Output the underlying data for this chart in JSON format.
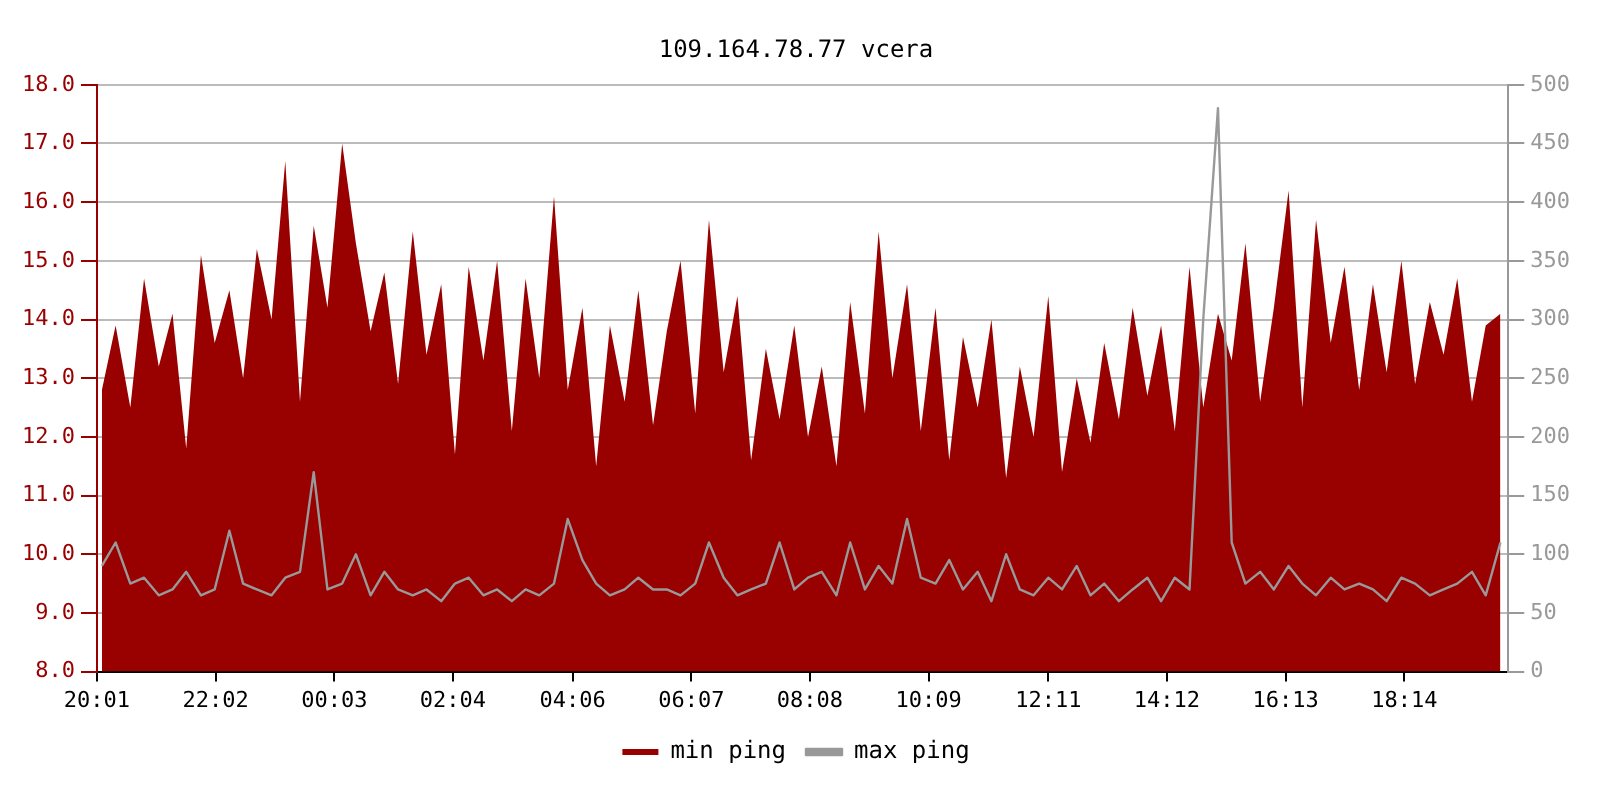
{
  "chart_data": {
    "type": "area",
    "title": "109.164.78.77 vcera",
    "x": [
      "--01-01T20:06",
      "--01-01T20:20",
      "--01-01T20:35",
      "--01-01T20:49",
      "--01-01T21:04",
      "--01-01T21:18",
      "--01-01T21:32",
      "--01-01T21:47",
      "--01-01T22:01",
      "--01-01T22:16",
      "--01-01T22:30",
      "--01-01T22:44",
      "--01-01T22:59",
      "--01-01T23:13",
      "--01-01T23:28",
      "--01-01T23:42",
      "--01-01T23:56",
      "--01-02T00:11",
      "--01-02T00:25",
      "--01-02T00:40",
      "--01-02T00:54",
      "--01-02T01:08",
      "--01-02T01:23",
      "--01-02T01:37",
      "--01-02T01:52",
      "--01-02T02:06",
      "--01-02T02:20",
      "--01-02T02:35",
      "--01-02T02:49",
      "--01-02T03:04",
      "--01-02T03:18",
      "--01-02T03:32",
      "--01-02T03:47",
      "--01-02T04:01",
      "--01-02T04:16",
      "--01-02T04:30",
      "--01-02T04:44",
      "--01-02T04:59",
      "--01-02T05:13",
      "--01-02T05:28",
      "--01-02T05:42",
      "--01-02T05:56",
      "--01-02T06:11",
      "--01-02T06:25",
      "--01-02T06:40",
      "--01-02T06:54",
      "--01-02T07:08",
      "--01-02T07:23",
      "--01-02T07:37",
      "--01-02T07:52",
      "--01-02T08:06",
      "--01-02T08:20",
      "--01-02T08:35",
      "--01-02T08:49",
      "--01-02T09:04",
      "--01-02T09:18",
      "--01-02T09:32",
      "--01-02T09:47",
      "--01-02T10:01",
      "--01-02T10:16",
      "--01-02T10:30",
      "--01-02T10:44",
      "--01-02T10:59",
      "--01-02T11:13",
      "--01-02T11:28",
      "--01-02T11:42",
      "--01-02T11:56",
      "--01-02T12:11",
      "--01-02T12:25",
      "--01-02T12:40",
      "--01-02T12:54",
      "--01-02T13:08",
      "--01-02T13:23",
      "--01-02T13:37",
      "--01-02T13:52",
      "--01-02T14:06",
      "--01-02T14:20",
      "--01-02T14:35",
      "--01-02T14:49",
      "--01-02T15:04",
      "--01-02T15:18",
      "--01-02T15:32",
      "--01-02T15:47",
      "--01-02T16:01",
      "--01-02T16:16",
      "--01-02T16:30",
      "--01-02T16:44",
      "--01-02T16:59",
      "--01-02T17:13",
      "--01-02T17:28",
      "--01-02T17:42",
      "--01-02T17:56",
      "--01-02T18:11",
      "--01-02T18:25",
      "--01-02T18:40",
      "--01-02T18:54",
      "--01-02T19:08",
      "--01-02T19:23",
      "--01-02T19:37",
      "--01-02T19:52"
    ],
    "series": [
      {
        "name": "min ping",
        "color": "#990000",
        "values": [
          12.8,
          13.9,
          12.5,
          14.7,
          13.2,
          14.1,
          11.8,
          15.1,
          13.6,
          14.5,
          13.0,
          15.2,
          14.0,
          16.7,
          12.6,
          15.6,
          14.2,
          17.0,
          15.3,
          13.8,
          14.8,
          12.9,
          15.5,
          13.4,
          14.6,
          11.7,
          14.9,
          13.3,
          15.0,
          12.1,
          14.7,
          13.0,
          16.1,
          12.8,
          14.2,
          11.5,
          13.9,
          12.6,
          14.5,
          12.2,
          13.8,
          15.0,
          12.4,
          15.7,
          13.1,
          14.4,
          11.6,
          13.5,
          12.3,
          13.9,
          12.0,
          13.2,
          11.5,
          14.3,
          12.4,
          15.5,
          13.0,
          14.6,
          12.1,
          14.2,
          11.6,
          13.7,
          12.5,
          14.0,
          11.3,
          13.2,
          12.0,
          14.4,
          11.4,
          13.0,
          11.9,
          13.6,
          12.3,
          14.2,
          12.7,
          13.9,
          12.1,
          14.9,
          12.5,
          14.1,
          13.3,
          15.3,
          12.6,
          14.2,
          16.2,
          12.5,
          15.7,
          13.6,
          14.9,
          12.8,
          14.6,
          13.1,
          15.0,
          12.9,
          14.3,
          13.4,
          14.7,
          12.6,
          13.9,
          14.1
        ]
      },
      {
        "name": "max ping",
        "type": "line",
        "axis": "y2",
        "color": "#999999",
        "values": [
          90,
          110,
          75,
          80,
          65,
          70,
          85,
          65,
          70,
          120,
          75,
          70,
          65,
          80,
          85,
          170,
          70,
          75,
          100,
          65,
          85,
          70,
          65,
          70,
          60,
          75,
          80,
          65,
          70,
          60,
          70,
          65,
          75,
          130,
          95,
          75,
          65,
          70,
          80,
          70,
          70,
          65,
          75,
          110,
          80,
          65,
          70,
          75,
          110,
          70,
          80,
          85,
          65,
          110,
          70,
          90,
          75,
          130,
          80,
          75,
          95,
          70,
          85,
          60,
          100,
          70,
          65,
          80,
          70,
          90,
          65,
          75,
          60,
          70,
          80,
          60,
          80,
          70,
          300,
          480,
          110,
          75,
          85,
          70,
          90,
          75,
          65,
          80,
          70,
          75,
          70,
          60,
          80,
          75,
          65,
          70,
          75,
          85,
          65,
          110
        ]
      }
    ],
    "xlim": [
      "--01-01T20:01",
      "--01-02T20:00"
    ],
    "xticks": [
      {
        "value": "--01-01T20:01",
        "label": "20:01"
      },
      {
        "value": "--01-01T22:02",
        "label": "22:02"
      },
      {
        "value": "--01-02T00:03",
        "label": "00:03"
      },
      {
        "value": "--01-02T02:04",
        "label": "02:04"
      },
      {
        "value": "--01-02T04:06",
        "label": "04:06"
      },
      {
        "value": "--01-02T06:07",
        "label": "06:07"
      },
      {
        "value": "--01-02T08:08",
        "label": "08:08"
      },
      {
        "value": "--01-02T10:09",
        "label": "10:09"
      },
      {
        "value": "--01-02T12:11",
        "label": "12:11"
      },
      {
        "value": "--01-02T14:12",
        "label": "14:12"
      },
      {
        "value": "--01-02T16:13",
        "label": "16:13"
      },
      {
        "value": "--01-02T18:14",
        "label": "18:14"
      }
    ],
    "ylim": [
      8,
      18
    ],
    "yticks": [
      {
        "value": 8,
        "label": "8.0"
      },
      {
        "value": 9,
        "label": "9.0"
      },
      {
        "value": 10,
        "label": "10.0"
      },
      {
        "value": 11,
        "label": "11.0"
      },
      {
        "value": 12,
        "label": "12.0"
      },
      {
        "value": 13,
        "label": "13.0"
      },
      {
        "value": 14,
        "label": "14.0"
      },
      {
        "value": 15,
        "label": "15.0"
      },
      {
        "value": 16,
        "label": "16.0"
      },
      {
        "value": 17,
        "label": "17.0"
      },
      {
        "value": 18,
        "label": "18.0"
      }
    ],
    "y2lim": [
      0,
      500
    ],
    "y2ticks": [
      0,
      50,
      100,
      150,
      200,
      250,
      300,
      350,
      400,
      450,
      500
    ],
    "grid": "y",
    "legend": "bottom",
    "marker": "none",
    "line_style": "solid"
  }
}
